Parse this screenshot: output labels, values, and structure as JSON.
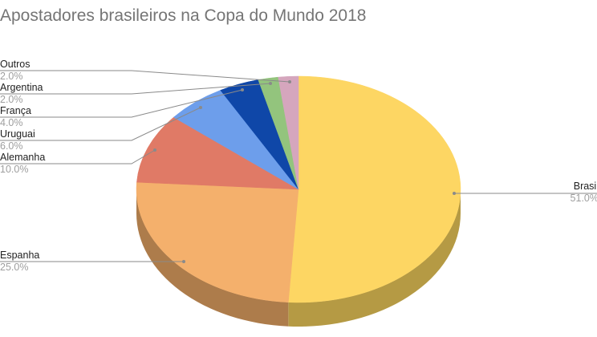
{
  "chart_data": {
    "type": "pie",
    "style": "3d",
    "title": "Apostadores brasileiros na Copa do Mundo 2018",
    "categories": [
      "Brasil",
      "Espanha",
      "Alemanha",
      "Uruguai",
      "França",
      "Argentina",
      "Outros"
    ],
    "values": [
      51.0,
      25.0,
      10.0,
      6.0,
      4.0,
      2.0,
      2.0
    ],
    "value_labels": [
      "51.0%",
      "25.0%",
      "10.0%",
      "6.0%",
      "4.0%",
      "2.0%",
      "2.0%"
    ],
    "colors": [
      "#fdd663",
      "#f4b06c",
      "#e07a66",
      "#6d9eeb",
      "#0f47a8",
      "#93c47d",
      "#d5a6bd"
    ],
    "side_colors": [
      "#b59a44",
      "#ad7c4b",
      "#a05647",
      "#4e71a8",
      "#0b3278",
      "#698c59",
      "#987687"
    ],
    "start_angle_deg": 0,
    "direction": "clockwise",
    "legend": "labeled slices with leader lines"
  },
  "labels": [
    {
      "name": "Brasil",
      "pct": "51.0%"
    },
    {
      "name": "Espanha",
      "pct": "25.0%"
    },
    {
      "name": "Alemanha",
      "pct": "10.0%"
    },
    {
      "name": "Uruguai",
      "pct": "6.0%"
    },
    {
      "name": "França",
      "pct": "4.0%"
    },
    {
      "name": "Argentina",
      "pct": "2.0%"
    },
    {
      "name": "Outros",
      "pct": "2.0%"
    }
  ]
}
